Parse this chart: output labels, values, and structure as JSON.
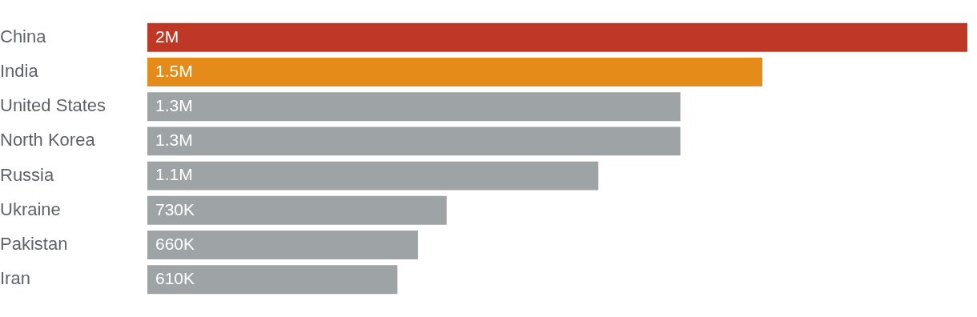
{
  "chart_data": {
    "type": "bar",
    "orientation": "horizontal",
    "categories": [
      "China",
      "India",
      "United States",
      "North Korea",
      "Russia",
      "Ukraine",
      "Pakistan",
      "Iran"
    ],
    "values": [
      2000000,
      1500000,
      1300000,
      1300000,
      1100000,
      730000,
      660000,
      610000
    ],
    "colors": [
      "#bf3826",
      "#e58b1a",
      "#9ea3a5",
      "#9ea3a5",
      "#9ea3a5",
      "#9ea3a5",
      "#9ea3a5",
      "#9ea3a5"
    ],
    "value_labels": [
      "2M",
      "1.5M",
      "1.3M",
      "1.3M",
      "1.1M",
      "730K",
      "660K",
      "610K"
    ],
    "xlim": [
      0,
      2000000
    ],
    "tick_labels": "y",
    "grid": false,
    "legend": false
  }
}
